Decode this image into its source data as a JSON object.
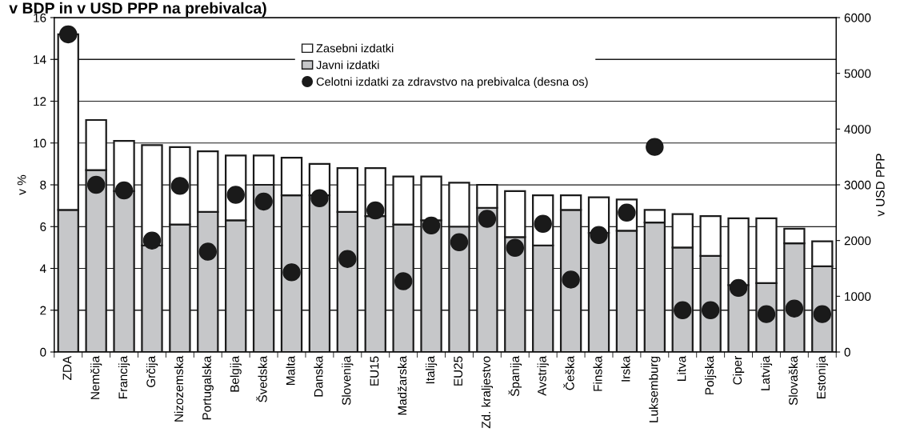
{
  "chart_data": {
    "type": "bar",
    "title": "v BDP in v USD PPP na prebivalca)",
    "ylabel": "v %",
    "y2label": "v USD PPP",
    "categories": [
      "ZDA",
      "Nemčija",
      "Francija",
      "Grčija",
      "Nizozemska",
      "Portugalska",
      "Belgija",
      "Švedska",
      "Malta",
      "Danska",
      "Slovenija",
      "EU15",
      "Madžarska",
      "Italija",
      "EU25",
      "Zd. kraljestvo",
      "Španija",
      "Avstrija",
      "Češka",
      "Finska",
      "Irska",
      "Luksemburg",
      "Litva",
      "Poljska",
      "Ciper",
      "Latvija",
      "Slovaška",
      "Estonija"
    ],
    "stacked": true,
    "series": [
      {
        "name": "Javni izdatki",
        "color": "#c6c7c9",
        "values": [
          6.8,
          8.7,
          7.7,
          5.1,
          6.1,
          6.7,
          6.3,
          8.0,
          7.5,
          7.5,
          6.7,
          6.5,
          6.1,
          6.3,
          6.0,
          6.9,
          5.5,
          5.1,
          6.8,
          5.7,
          5.8,
          6.2,
          5.0,
          4.6,
          3.2,
          3.3,
          5.2,
          4.1
        ]
      },
      {
        "name": "Zasebni izdatki",
        "color": "#ffffff",
        "values": [
          8.4,
          2.4,
          2.4,
          4.8,
          3.7,
          2.9,
          3.1,
          1.4,
          1.8,
          1.5,
          2.1,
          2.3,
          2.3,
          2.1,
          2.1,
          1.1,
          2.2,
          2.4,
          0.7,
          1.7,
          1.5,
          0.6,
          1.6,
          1.9,
          3.2,
          3.1,
          0.7,
          1.2
        ]
      },
      {
        "name": "Celotni izdatki za zdravstvo na prebivalca (desna os)",
        "type": "scatter",
        "axis": "y2",
        "marker": "circle",
        "color": "#1a1a1a",
        "values": [
          5700,
          3000,
          2900,
          2000,
          2980,
          1800,
          2820,
          2700,
          1430,
          2760,
          1670,
          2540,
          1270,
          2270,
          1970,
          2390,
          1870,
          2300,
          1300,
          2100,
          2500,
          3680,
          750,
          750,
          1150,
          680,
          780,
          680
        ]
      }
    ],
    "ylim": [
      0,
      16
    ],
    "yticks": [
      0,
      2,
      4,
      6,
      8,
      10,
      12,
      14,
      16
    ],
    "y2lim": [
      0,
      6000
    ],
    "y2ticks": [
      0,
      1000,
      2000,
      3000,
      4000,
      5000,
      6000
    ],
    "grid": "y",
    "legend": "top"
  }
}
